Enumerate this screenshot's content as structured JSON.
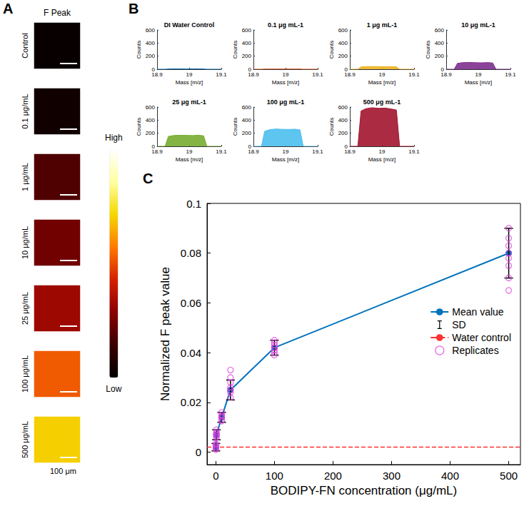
{
  "chart_data": [
    {
      "panel": "A",
      "type": "heatmap",
      "title": "F Peak",
      "rows": [
        "Control",
        "0.1 μg/mL",
        "1 μg/mL",
        "10 μg/mL",
        "25 μg/mL",
        "100 μg/mL",
        "500 μg/mL"
      ],
      "intensity": [
        0.02,
        0.04,
        0.18,
        0.24,
        0.32,
        0.52,
        0.7
      ],
      "color_range": [
        0,
        1
      ],
      "color_labels": {
        "high": "High",
        "low": "Low"
      },
      "scale_bar_label": "100 μm"
    },
    {
      "panel": "B",
      "type": "area",
      "x_label": "Mass [m/z]",
      "y_label": "Counts",
      "xlim": [
        18.9,
        19.1
      ],
      "xticks": [
        18.9,
        19,
        19.1
      ],
      "ylim": [
        0,
        600
      ],
      "yticks": [
        0,
        200,
        400,
        600
      ],
      "grid": false,
      "x": [
        18.9,
        18.925,
        18.935,
        18.95,
        18.97,
        18.99,
        19.01,
        19.03,
        19.045,
        19.055,
        19.1
      ],
      "series": [
        {
          "name": "DI Water Control",
          "color": "#0072bd",
          "values": [
            0,
            0,
            4,
            5,
            5,
            4,
            5,
            5,
            4,
            0,
            0
          ]
        },
        {
          "name": "0.1 μg mL-1",
          "color": "#d95319",
          "values": [
            0,
            0,
            3,
            3,
            3,
            3,
            3,
            3,
            3,
            0,
            0
          ]
        },
        {
          "name": "1 μg mL-1",
          "color": "#edb120",
          "values": [
            0,
            0,
            35,
            40,
            42,
            40,
            38,
            40,
            36,
            0,
            0
          ]
        },
        {
          "name": "10 μg mL-1",
          "color": "#7e2f8e",
          "values": [
            0,
            0,
            90,
            100,
            105,
            100,
            98,
            102,
            95,
            0,
            0
          ]
        },
        {
          "name": "25 μg mL-1",
          "color": "#77ac30",
          "values": [
            0,
            0,
            150,
            165,
            170,
            168,
            165,
            170,
            160,
            0,
            0
          ]
        },
        {
          "name": "100 μg mL-1",
          "color": "#4dbeee",
          "values": [
            0,
            0,
            230,
            255,
            265,
            260,
            258,
            262,
            250,
            0,
            0
          ]
        },
        {
          "name": "500 μg mL-1",
          "color": "#a2142f",
          "values": [
            0,
            0,
            540,
            575,
            590,
            580,
            585,
            570,
            555,
            0,
            0
          ]
        }
      ]
    },
    {
      "panel": "C",
      "type": "line",
      "x_label": "BODIPY-FN concentration (μg/mL)",
      "y_label": "Normalized F peak value",
      "xlim": [
        -15,
        520
      ],
      "xticks": [
        0,
        100,
        200,
        300,
        400,
        500
      ],
      "ylim": [
        -0.005,
        0.1
      ],
      "yticks": [
        0,
        0.02,
        0.04,
        0.06,
        0.08,
        0.1
      ],
      "grid": false,
      "legend": "right",
      "x": [
        0.1,
        1,
        10,
        25,
        100,
        500
      ],
      "series": [
        {
          "name": "Mean value",
          "color": "#0072bd",
          "marker": "circle",
          "line_style": "solid",
          "values": [
            0.002,
            0.007,
            0.014,
            0.025,
            0.042,
            0.08
          ]
        }
      ],
      "sd": {
        "name": "SD",
        "color": "#000000",
        "values": [
          0.0015,
          0.002,
          0.002,
          0.004,
          0.003,
          0.01
        ]
      },
      "water_control": {
        "name": "Water control",
        "color": "#ff3030",
        "line_style": "dashed",
        "value": 0.002
      },
      "replicates": {
        "name": "Replicates",
        "color": "#e040e0",
        "marker": "circle",
        "values": [
          [
            0.001,
            0.0015,
            0.002,
            0.0025,
            0.003,
            0.0035
          ],
          [
            0.006,
            0.0065,
            0.007,
            0.0075,
            0.008,
            0.009
          ],
          [
            0.0125,
            0.013,
            0.014,
            0.0145,
            0.015,
            0.016
          ],
          [
            0.022,
            0.024,
            0.025,
            0.026,
            0.028,
            0.03,
            0.033
          ],
          [
            0.039,
            0.04,
            0.041,
            0.042,
            0.043,
            0.044,
            0.045
          ],
          [
            0.065,
            0.07,
            0.075,
            0.078,
            0.08,
            0.083,
            0.086,
            0.09
          ]
        ]
      }
    }
  ]
}
